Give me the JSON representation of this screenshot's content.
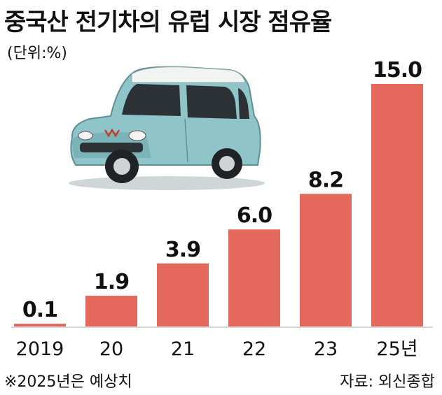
{
  "title": "중국산 전기차의 유럽 시장 점유율",
  "unit_label": "(단위:%)",
  "footnote": "※2025년은 예상치",
  "source": "자료: 외신종합",
  "colors": {
    "bar": "#e4685c",
    "axis": "#d9d9d9",
    "text": "#111111"
  },
  "chart_data": {
    "type": "bar",
    "title": "중국산 전기차의 유럽 시장 점유율",
    "ylabel": "(단위:%)",
    "xlabel": "",
    "categories": [
      "2019",
      "20",
      "21",
      "22",
      "23",
      "25년"
    ],
    "values": [
      0.1,
      1.9,
      3.9,
      6.0,
      8.2,
      15.0
    ],
    "value_labels": [
      "0.1",
      "1.9",
      "3.9",
      "6.0",
      "8.2",
      "15.0"
    ],
    "ylim": [
      0,
      15
    ],
    "grid": false,
    "legend": "none"
  }
}
